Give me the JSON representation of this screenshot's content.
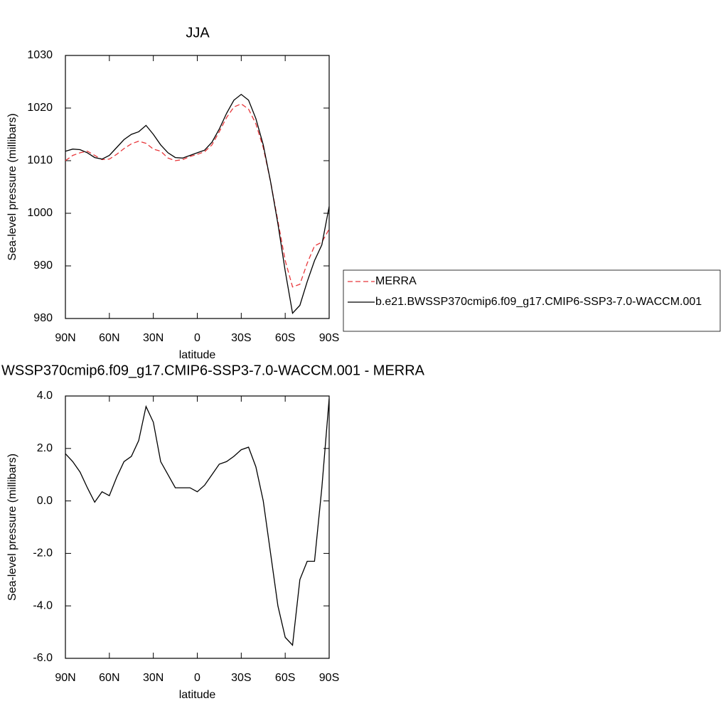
{
  "chart_data": [
    {
      "type": "line",
      "title": "JJA",
      "x_label": "latitude",
      "y_label": "Sea-level pressure (millibars)",
      "x": [
        90,
        85,
        80,
        75,
        70,
        65,
        60,
        55,
        50,
        45,
        40,
        35,
        30,
        25,
        20,
        15,
        10,
        5,
        0,
        -5,
        -10,
        -15,
        -20,
        -25,
        -30,
        -35,
        -40,
        -45,
        -50,
        -55,
        -60,
        -65,
        -70,
        -75,
        -80,
        -85,
        -90
      ],
      "series": [
        {
          "name": "MERRA",
          "color": "#e8363a",
          "style": "dashed",
          "values": [
            1010.0,
            1011.0,
            1011.5,
            1011.8,
            1011.0,
            1010.2,
            1010.3,
            1011.2,
            1012.3,
            1013.2,
            1013.7,
            1013.3,
            1012.2,
            1011.8,
            1010.5,
            1010.0,
            1010.2,
            1010.8,
            1011.2,
            1011.7,
            1013.0,
            1015.5,
            1018.2,
            1020.2,
            1020.8,
            1019.8,
            1017.0,
            1012.5,
            1006.0,
            998.5,
            991.0,
            986.0,
            986.5,
            990.5,
            993.8,
            994.5,
            997.0
          ]
        },
        {
          "name": "b.e21.BWSSP370cmip6.f09_g17.CMIP6-SSP3-7.0-WACCM.001",
          "color": "#000000",
          "style": "solid",
          "values": [
            1011.8,
            1012.2,
            1012.1,
            1011.5,
            1010.6,
            1010.3,
            1011.0,
            1012.5,
            1014.0,
            1015.0,
            1015.5,
            1016.7,
            1015.0,
            1013.0,
            1011.5,
            1010.6,
            1010.5,
            1011.0,
            1011.5,
            1012.0,
            1013.5,
            1016.0,
            1019.0,
            1021.5,
            1022.6,
            1021.5,
            1018.0,
            1013.0,
            1006.0,
            998.0,
            989.0,
            981.0,
            982.5,
            987.0,
            991.0,
            994.0,
            1001.3
          ]
        }
      ],
      "xlim": [
        90,
        -90
      ],
      "xticks": [
        {
          "value": 90,
          "label": "90N"
        },
        {
          "value": 60,
          "label": "60N"
        },
        {
          "value": 30,
          "label": "30N"
        },
        0,
        {
          "value": -30,
          "label": "30S"
        },
        {
          "value": -60,
          "label": "60S"
        },
        {
          "value": -90,
          "label": "90S"
        }
      ],
      "ylim": [
        980,
        1030
      ],
      "yticks": [
        980,
        990,
        1000,
        1010,
        1020,
        1030
      ],
      "legend": "right"
    },
    {
      "type": "line",
      "title": "WSSP370cmip6.f09_g17.CMIP6-SSP3-7.0-WACCM.001 - MERRA",
      "x_label": "latitude",
      "y_label": "Sea-level pressure (millibars)",
      "x": [
        90,
        85,
        80,
        75,
        70,
        65,
        60,
        55,
        50,
        45,
        40,
        35,
        30,
        25,
        20,
        15,
        10,
        5,
        0,
        -5,
        -10,
        -15,
        -20,
        -25,
        -30,
        -35,
        -40,
        -45,
        -50,
        -55,
        -60,
        -65,
        -70,
        -75,
        -80,
        -85,
        -90
      ],
      "series": [
        {
          "color": "#000000",
          "style": "solid",
          "values": [
            1.8,
            1.5,
            1.1,
            0.5,
            -0.05,
            0.35,
            0.2,
            0.9,
            1.5,
            1.7,
            2.3,
            3.6,
            3.0,
            1.5,
            1.0,
            0.5,
            0.5,
            0.5,
            0.35,
            0.6,
            1.0,
            1.4,
            1.5,
            1.7,
            1.95,
            2.05,
            1.3,
            0.0,
            -2.0,
            -4.0,
            -5.2,
            -5.5,
            -3.0,
            -2.3,
            -2.3,
            0.5,
            3.9
          ]
        }
      ],
      "xlim": [
        90,
        -90
      ],
      "xticks": [
        {
          "value": 90,
          "label": "90N"
        },
        {
          "value": 60,
          "label": "60N"
        },
        {
          "value": 30,
          "label": "30N"
        },
        0,
        {
          "value": -30,
          "label": "30S"
        },
        {
          "value": -60,
          "label": "60S"
        },
        {
          "value": -90,
          "label": "90S"
        }
      ],
      "ylim": [
        -6,
        4
      ],
      "yticks": [
        {
          "value": -6,
          "label": "-6.0"
        },
        {
          "value": -4,
          "label": "-4.0"
        },
        {
          "value": -2,
          "label": "-2.0"
        },
        {
          "value": 0,
          "label": "0.0"
        },
        {
          "value": 2,
          "label": "2.0"
        },
        {
          "value": 4,
          "label": "4.0"
        }
      ]
    }
  ]
}
